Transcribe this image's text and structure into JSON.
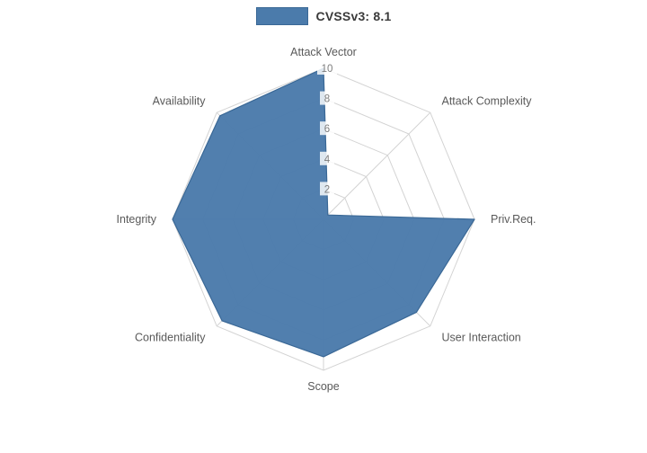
{
  "legend": {
    "label": "CVSSv3: 8.1"
  },
  "chart_data": {
    "type": "radar",
    "title": "CVSSv3: 8.1",
    "categories": [
      "Attack Vector",
      "Attack Complexity",
      "Priv.Req.",
      "User Interaction",
      "Scope",
      "Confidentiality",
      "Integrity",
      "Availability"
    ],
    "series": [
      {
        "name": "CVSSv3: 8.1",
        "values": [
          10,
          0.4,
          10,
          8.7,
          9.1,
          9.5,
          10,
          9.7
        ]
      }
    ],
    "ticks": [
      2,
      4,
      6,
      8,
      10
    ],
    "axis_range": [
      0,
      10
    ],
    "start_axis": "top",
    "direction": "clockwise",
    "grid": true,
    "legend_position": "top",
    "colors": {
      "fill": "#4b7bab",
      "stroke": "#3a6896",
      "grid": "#d3d3d3",
      "axis_label": "#595959",
      "tick_label": "#7d7d7d",
      "tick_bg": "#ffffff",
      "background": "#ffffff"
    }
  }
}
